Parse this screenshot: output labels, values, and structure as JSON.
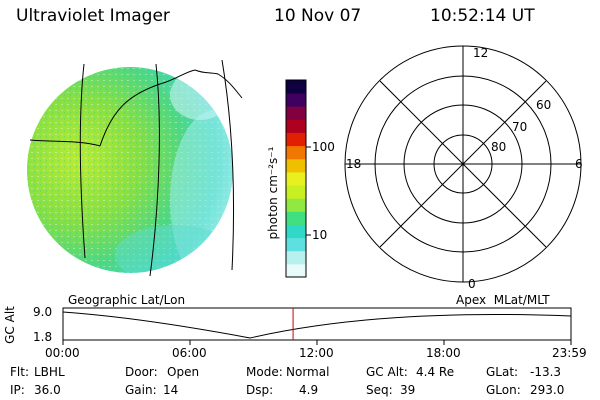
{
  "header": {
    "instrument": "Ultraviolet Imager",
    "date": "10 Nov 07",
    "time": "10:52:14 UT"
  },
  "colorbar": {
    "unit_label": "photon cm⁻²s⁻¹",
    "tick_100": "100",
    "tick_10": "10",
    "colors": [
      "#e8fafa",
      "#b8f0f0",
      "#5fe0e0",
      "#30d8c8",
      "#40e080",
      "#90e840",
      "#c8f020",
      "#e8f020",
      "#f0c000",
      "#f07800",
      "#e02000",
      "#b00020",
      "#800040",
      "#400060",
      "#100040"
    ]
  },
  "polar": {
    "lat_labels": [
      "60",
      "70",
      "80"
    ],
    "mlt_labels": {
      "top": "12",
      "left": "18",
      "right": "6",
      "bottom": "0"
    }
  },
  "altitude_plot": {
    "axis_title": "GC Alt",
    "y_ticks": [
      "9.0",
      "1.8"
    ],
    "left_label": "Geographic Lat/Lon",
    "right_label": "Apex  MLat/MLT",
    "x_ticks": [
      "00:00",
      "06:00",
      "12:00",
      "18:00",
      "23:59"
    ],
    "current_time_hours": 10.87
  },
  "status": {
    "row1": [
      {
        "key": "Flt:",
        "value": "LBHL"
      },
      {
        "key": "Door:",
        "value": "Open"
      },
      {
        "key": "Mode:",
        "value": "Normal"
      },
      {
        "key": "GC Alt:",
        "value": "4.4 Re"
      },
      {
        "key": "GLat:",
        "value": "-13.3"
      }
    ],
    "row2": [
      {
        "key": "IP:",
        "value": "36.0"
      },
      {
        "key": "Gain:",
        "value": "14"
      },
      {
        "key": "Dsp:",
        "value": "4.9"
      },
      {
        "key": "Seq:",
        "value": "39"
      },
      {
        "key": "GLon:",
        "value": "293.0"
      }
    ]
  }
}
